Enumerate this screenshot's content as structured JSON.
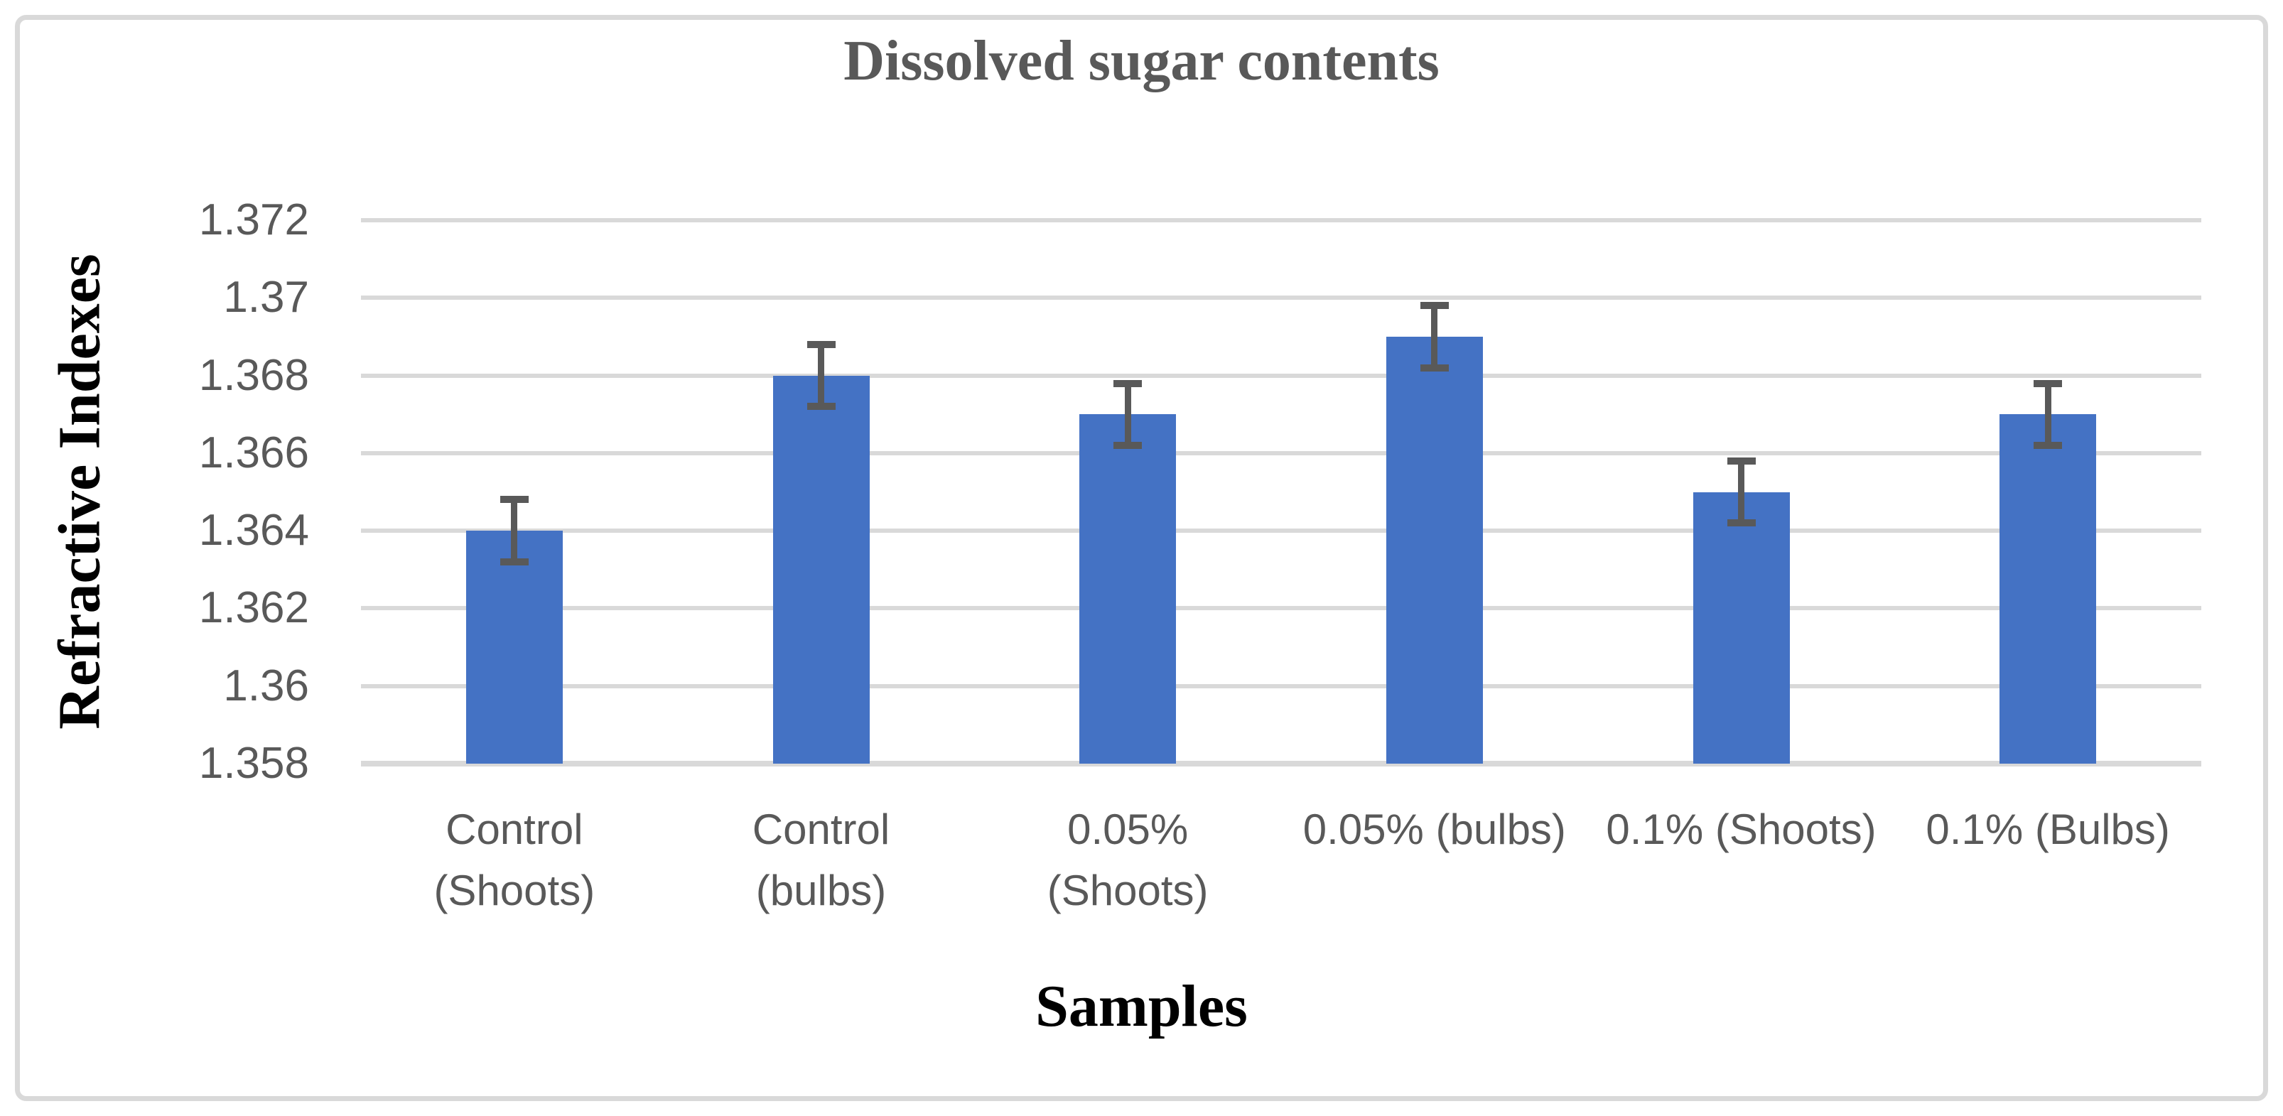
{
  "chart_data": {
    "type": "bar",
    "title": "Dissolved sugar contents",
    "xlabel": "Samples",
    "ylabel": "Refractive Indexes",
    "categories": [
      "Control (Shoots)",
      "Control (bulbs)",
      "0.05% (Shoots)",
      "0.05% (bulbs)",
      "0.1% (Shoots)",
      "0.1% (Bulbs)"
    ],
    "category_lines": [
      [
        "Control",
        "(Shoots)"
      ],
      [
        "Control",
        "(bulbs)"
      ],
      [
        "0.05%",
        "(Shoots)"
      ],
      [
        "0.05% (bulbs)"
      ],
      [
        "0.1% (Shoots)"
      ],
      [
        "0.1% (Bulbs)"
      ]
    ],
    "values": [
      1.364,
      1.368,
      1.367,
      1.369,
      1.365,
      1.367
    ],
    "error_bar": 0.0008,
    "y_ticks": [
      "1.358",
      "1.36",
      "1.362",
      "1.364",
      "1.366",
      "1.368",
      "1.37",
      "1.372"
    ],
    "ylim": [
      1.358,
      1.372
    ],
    "grid": true,
    "legend_position": "none",
    "colors": {
      "bar": "#4472C4",
      "error_bar": "#595959",
      "gridline": "#D9D9D9",
      "border": "#D9D9D9",
      "title_text": "#595959",
      "tick_text": "#595959",
      "category_text": "#595959",
      "axis_title_text": "#000000"
    }
  }
}
